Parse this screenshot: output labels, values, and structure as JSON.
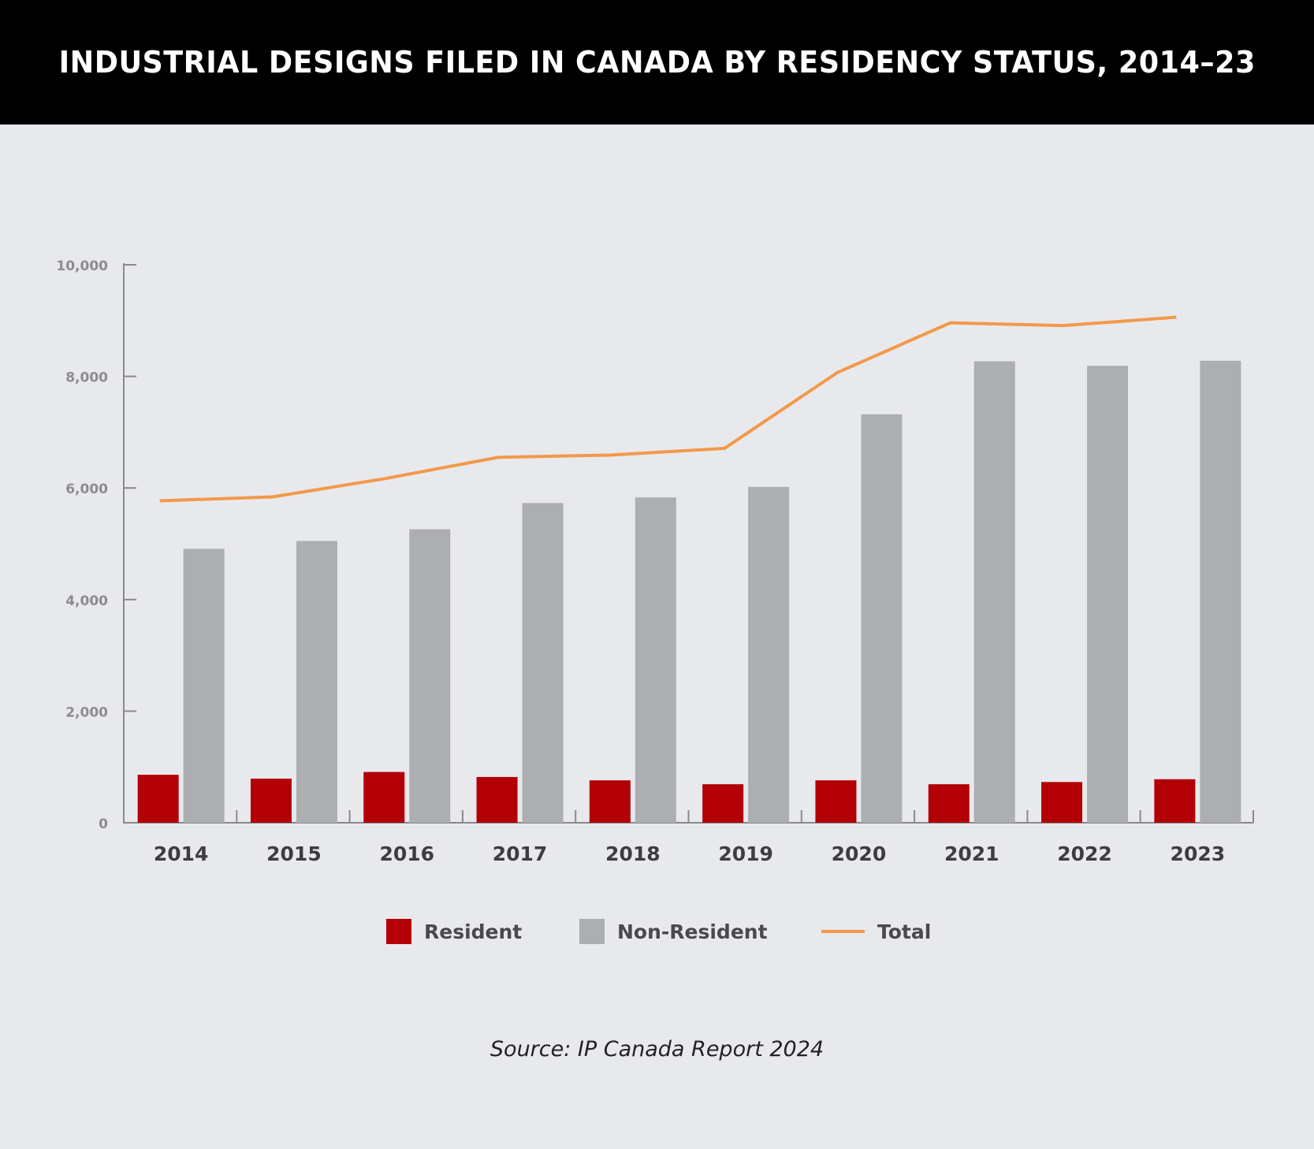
{
  "title": "INDUSTRIAL DESIGNS FILED IN CANADA BY RESIDENCY STATUS, 2014–23",
  "source": "Source: IP Canada Report 2024",
  "colors": {
    "resident": "#b30006",
    "non_resident": "#adaeb2",
    "total": "#f2994a",
    "axis": "#8a8a8e",
    "tick_label": "#8c8c90",
    "category_label": "#3d3d3f",
    "legend_label": "#4a4a4c"
  },
  "chart_data": {
    "type": "bar",
    "categories": [
      "2014",
      "2015",
      "2016",
      "2017",
      "2018",
      "2019",
      "2020",
      "2021",
      "2022",
      "2023"
    ],
    "series": [
      {
        "name": "Resident",
        "type": "bar",
        "values": [
          860,
          790,
          910,
          820,
          760,
          690,
          760,
          690,
          730,
          780
        ]
      },
      {
        "name": "Non-Resident",
        "type": "bar",
        "values": [
          4910,
          5050,
          5260,
          5730,
          5830,
          6020,
          7320,
          8270,
          8190,
          8280
        ]
      },
      {
        "name": "Total",
        "type": "line",
        "values": [
          5770,
          5840,
          6170,
          6550,
          6590,
          6710,
          8070,
          8960,
          8910,
          9060
        ]
      }
    ],
    "yticks": [
      "0",
      "2,000",
      "4,000",
      "6,000",
      "8,000",
      "10,000"
    ],
    "ylim": [
      0,
      10000
    ],
    "xlabel": "",
    "ylabel": "",
    "legend": "bottom-center",
    "grid": false
  }
}
